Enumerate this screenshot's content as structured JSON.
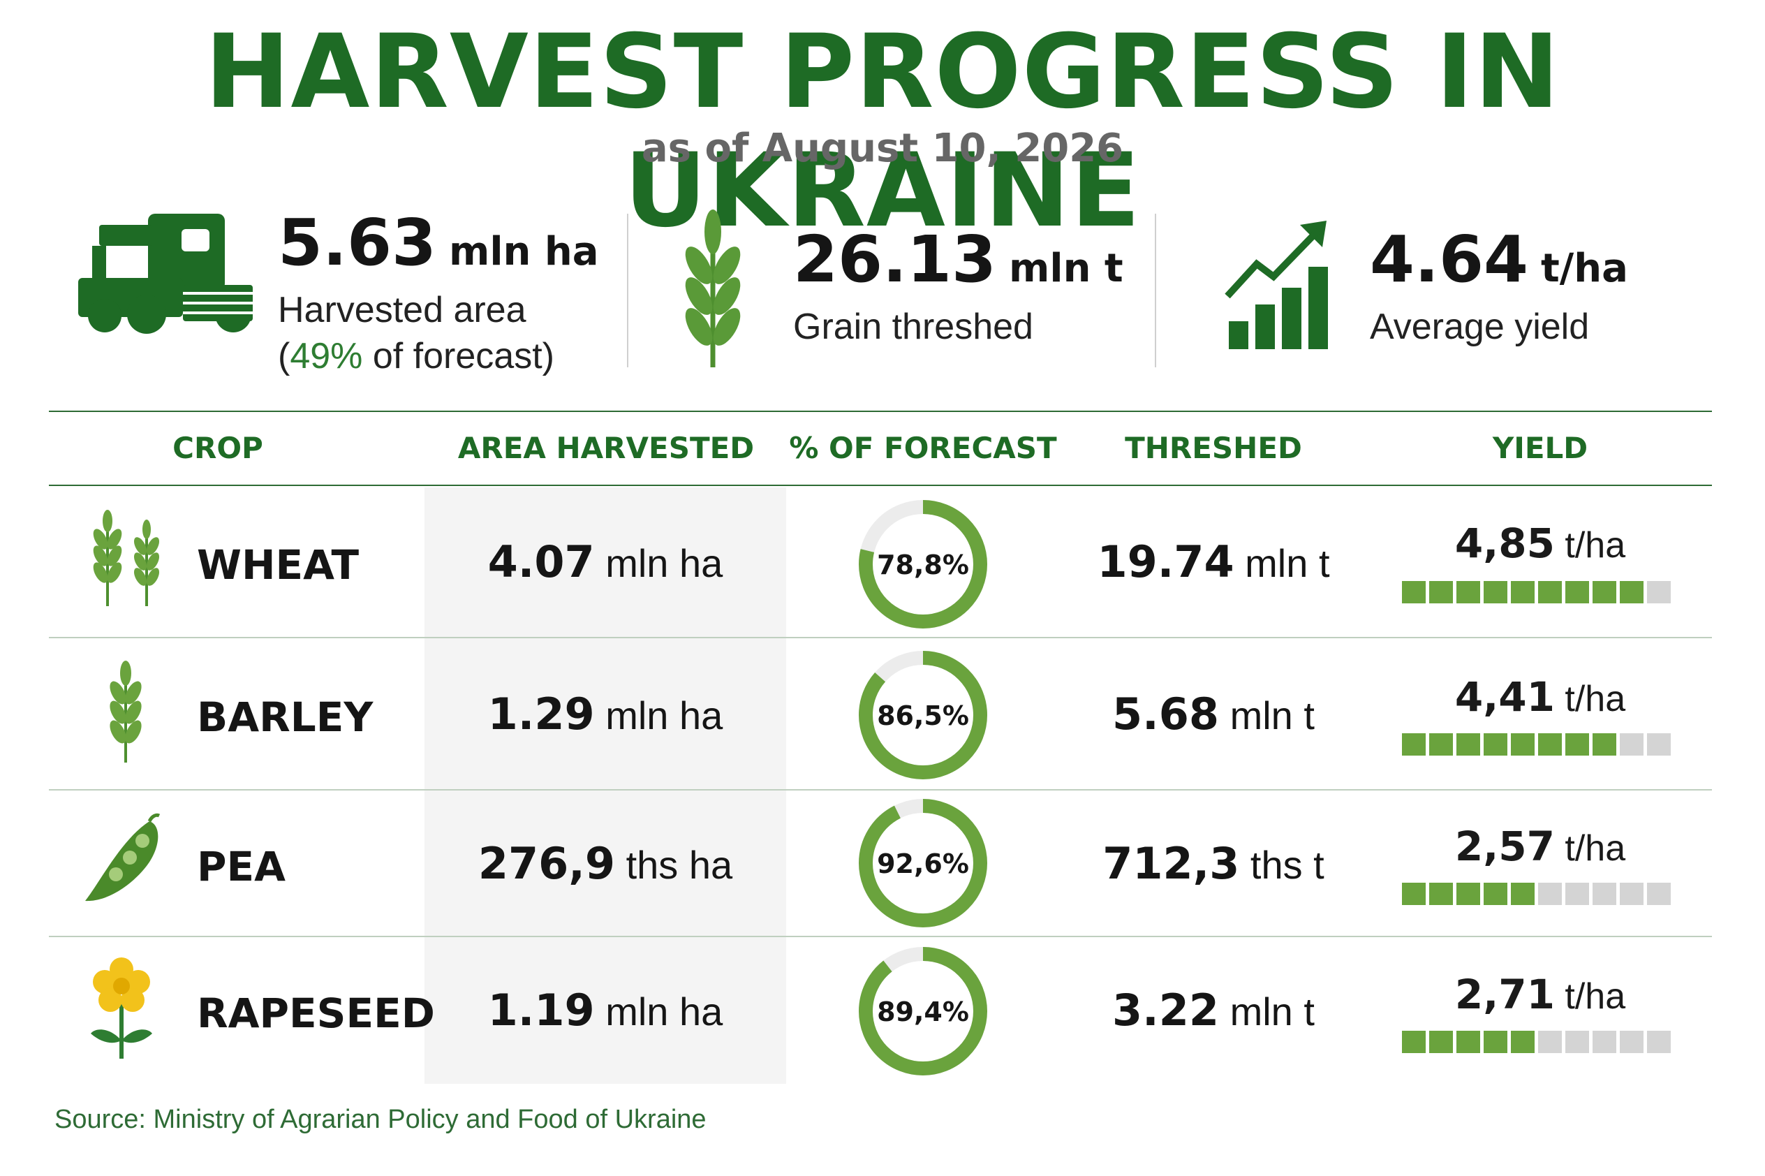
{
  "header": {
    "title": "HARVEST PROGRESS IN UKRAINE",
    "subtitle": "as of August 10, 2026"
  },
  "stats": [
    {
      "value": "5.63",
      "unit": "mln ha",
      "label": "Harvested area",
      "label2_prefix": "(",
      "label2_pct": "49%",
      "label2_suffix": " of forecast)",
      "icon": "combine-harvester-icon"
    },
    {
      "value": "26.13",
      "unit": "mln t",
      "label": "Grain threshed",
      "icon": "wheat-ear-icon"
    },
    {
      "value": "4.64",
      "unit": "t/ha",
      "label": "Average yield",
      "icon": "growth-chart-icon"
    }
  ],
  "table": {
    "headers": [
      "CROP",
      "AREA HARVESTED",
      "% OF FORECAST",
      "THRESHED",
      "YIELD"
    ],
    "rows": [
      {
        "crop": "WHEAT",
        "icon": "wheat-icon",
        "area_num": "4.07",
        "area_unit": "mln ha",
        "pct_label": "78,8%",
        "pct": 78.8,
        "threshed_num": "19.74",
        "threshed_unit": "mln t",
        "yield_num": "4,85",
        "yield_unit": "t/ha",
        "yield_bar_filled": 9,
        "yield_bar_total": 10
      },
      {
        "crop": "BARLEY",
        "icon": "barley-icon",
        "area_num": "1.29",
        "area_unit": "mln ha",
        "pct_label": "86,5%",
        "pct": 86.5,
        "threshed_num": "5.68",
        "threshed_unit": "mln t",
        "yield_num": "4,41",
        "yield_unit": "t/ha",
        "yield_bar_filled": 8,
        "yield_bar_total": 10
      },
      {
        "crop": "PEA",
        "icon": "pea-pod-icon",
        "area_num": "276,9",
        "area_unit": "ths ha",
        "pct_label": "92,6%",
        "pct": 92.6,
        "threshed_num": "712,3",
        "threshed_unit": "ths t",
        "yield_num": "2,57",
        "yield_unit": "t/ha",
        "yield_bar_filled": 5,
        "yield_bar_total": 10
      },
      {
        "crop": "RAPESEED",
        "icon": "rapeseed-flower-icon",
        "area_num": "1.19",
        "area_unit": "mln ha",
        "pct_label": "89,4%",
        "pct": 89.4,
        "threshed_num": "3.22",
        "threshed_unit": "mln t",
        "yield_num": "2,71",
        "yield_unit": "t/ha",
        "yield_bar_filled": 5,
        "yield_bar_total": 10
      }
    ]
  },
  "footer": {
    "source": "Source: Ministry of Agrarian Policy and Food of Ukraine"
  },
  "colors": {
    "title_green": "#1e6b25",
    "accent_green": "#2e7d32",
    "bar_green": "#6aa33d",
    "bar_empty": "#d4d4d4",
    "donut_track": "#ececec"
  }
}
